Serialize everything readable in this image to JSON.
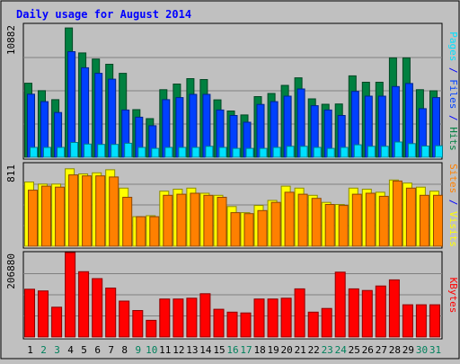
{
  "chart_data": {
    "type": "bar",
    "title": "Daily usage for August 2014",
    "days": [
      "1",
      "2",
      "3",
      "4",
      "5",
      "6",
      "7",
      "8",
      "9",
      "10",
      "11",
      "12",
      "13",
      "14",
      "15",
      "16",
      "17",
      "18",
      "19",
      "20",
      "21",
      "22",
      "23",
      "24",
      "25",
      "26",
      "27",
      "28",
      "29",
      "30",
      "31"
    ],
    "weekend_days": [
      "2",
      "3",
      "9",
      "10",
      "16",
      "17",
      "23",
      "24",
      "30",
      "31"
    ],
    "panels": [
      {
        "name": "requests",
        "max_label": "10882",
        "ymax": 10882,
        "ylabel_parts": [
          "Pages",
          "Files",
          "Hits"
        ],
        "series": [
          {
            "name": "Hits",
            "color": "#008040",
            "values": [
              6060,
              5450,
              4710,
              10580,
              8540,
              8040,
              7610,
              6870,
              3900,
              3160,
              5530,
              5990,
              6430,
              6360,
              4700,
              3790,
              3460,
              4960,
              5220,
              5880,
              6500,
              4780,
              4340,
              4360,
              6660,
              6140,
              6140,
              8130,
              8130,
              5530,
              5440
            ]
          },
          {
            "name": "Files",
            "color": "#0040ff",
            "values": [
              5160,
              4550,
              3660,
              8640,
              7320,
              6870,
              6390,
              3870,
              3280,
              2580,
              4710,
              4880,
              5150,
              5150,
              3870,
              3420,
              2870,
              4320,
              4550,
              5000,
              5590,
              4220,
              3870,
              3420,
              5390,
              5000,
              5000,
              5790,
              6040,
              3980,
              4880
            ]
          },
          {
            "name": "Pages",
            "color": "#00e0ff",
            "values": [
              810,
              810,
              810,
              1210,
              1080,
              1050,
              1050,
              1150,
              810,
              730,
              810,
              810,
              810,
              900,
              810,
              730,
              730,
              730,
              810,
              900,
              900,
              810,
              730,
              810,
              1020,
              900,
              900,
              1250,
              1120,
              920,
              940
            ]
          }
        ]
      },
      {
        "name": "visitors",
        "max_label": "811",
        "ymax": 811,
        "ylabel_parts": [
          "Sites",
          "Visits"
        ],
        "series": [
          {
            "name": "Visits",
            "color": "#ffff00",
            "values": [
              630,
              610,
              610,
              760,
              710,
              720,
              750,
              570,
              290,
              300,
              540,
              560,
              570,
              520,
              500,
              390,
              330,
              400,
              450,
              590,
              570,
              500,
              430,
              410,
              570,
              560,
              530,
              650,
              620,
              580,
              540
            ]
          },
          {
            "name": "Sites",
            "color": "#ff8000",
            "values": [
              550,
              590,
              580,
              700,
              690,
              690,
              680,
              480,
              290,
              290,
              500,
              510,
              520,
              500,
              480,
              330,
              320,
              350,
              430,
              530,
              510,
              470,
              410,
              400,
              510,
              520,
              490,
              640,
              570,
              500,
              500
            ]
          }
        ]
      },
      {
        "name": "volume",
        "max_label": "206880",
        "ymax": 206880,
        "ylabel_parts": [
          "KBytes"
        ],
        "series": [
          {
            "name": "KBytes",
            "color": "#ff0000",
            "values": [
              117000,
              113000,
              73000,
              206880,
              160000,
              143000,
              120000,
              88000,
              65000,
              41000,
              93000,
              93000,
              95000,
              106000,
              68000,
              61000,
              59000,
              93000,
              93000,
              95000,
              118000,
              61000,
              70000,
              159000,
              118000,
              114000,
              125000,
              140000,
              79000,
              79000,
              79000
            ]
          }
        ]
      }
    ],
    "colors": {
      "background": "#c0c0c0",
      "title": "#0000ff",
      "weekday_label": "#000000",
      "weekend_label": "#00805c",
      "separator": "#0000ff",
      "gridline": "#808080"
    }
  }
}
